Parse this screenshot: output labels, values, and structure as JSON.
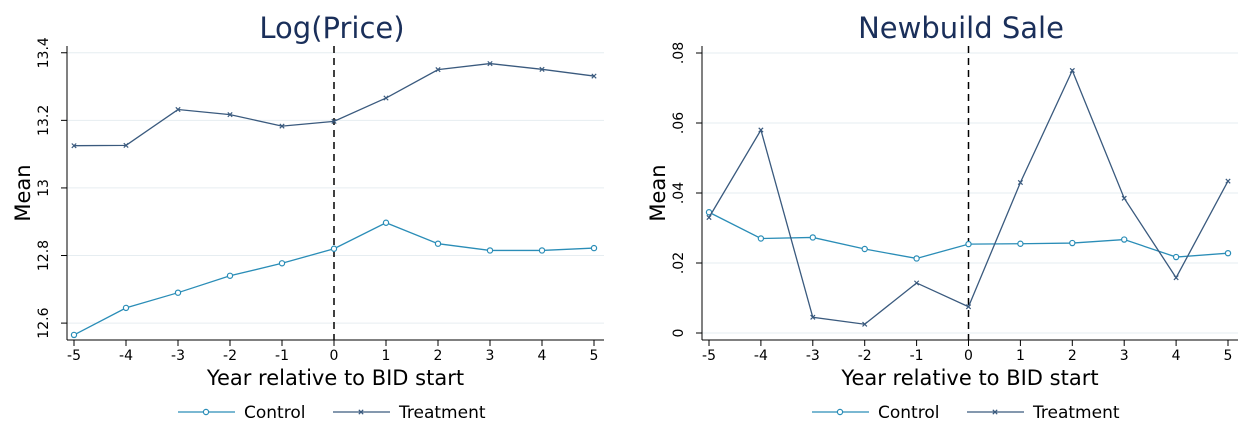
{
  "colors": {
    "control": "#2a8db7",
    "treatment": "#3a5a7e",
    "grid": "#e6edf1",
    "axis": "#000000"
  },
  "chart_data": [
    {
      "type": "line",
      "title": "Log(Price)",
      "xlabel": "Year relative to BID start",
      "ylabel": "Mean",
      "x": [
        -5,
        -4,
        -3,
        -2,
        -1,
        0,
        1,
        2,
        3,
        4,
        5
      ],
      "xlim": [
        -5,
        5
      ],
      "ylim": [
        12.55,
        13.42
      ],
      "yticks": [
        12.6,
        12.8,
        13,
        13.2,
        13.4
      ],
      "ytick_labels": [
        "12.6",
        "12.8",
        "13",
        "13.2",
        "13.4"
      ],
      "xtick_labels": [
        "-5",
        "-4",
        "-3",
        "-2",
        "-1",
        "0",
        "1",
        "2",
        "3",
        "4",
        "5"
      ],
      "vline_x": 0,
      "grid": true,
      "legend_position": "bottom",
      "series": [
        {
          "name": "Control",
          "marker": "circle",
          "values": [
            12.565,
            12.645,
            12.69,
            12.74,
            12.777,
            12.82,
            12.897,
            12.835,
            12.815,
            12.815,
            12.822
          ]
        },
        {
          "name": "Treatment",
          "marker": "x",
          "values": [
            13.125,
            13.126,
            13.232,
            13.217,
            13.183,
            13.197,
            13.266,
            13.35,
            13.368,
            13.351,
            13.331
          ]
        }
      ]
    },
    {
      "type": "line",
      "title": "Newbuild Sale",
      "xlabel": "Year relative to BID start",
      "ylabel": "Mean",
      "x": [
        -5,
        -4,
        -3,
        -2,
        -1,
        0,
        1,
        2,
        3,
        4,
        5
      ],
      "xlim": [
        -5,
        5
      ],
      "ylim": [
        -0.002,
        0.082
      ],
      "yticks": [
        0,
        0.02,
        0.04,
        0.06,
        0.08
      ],
      "ytick_labels": [
        "0",
        ".02",
        ".04",
        ".06",
        ".08"
      ],
      "xtick_labels": [
        "-5",
        "-4",
        "-3",
        "-2",
        "-1",
        "0",
        "1",
        "2",
        "3",
        "4",
        "5"
      ],
      "vline_x": 0,
      "grid": true,
      "legend_position": "bottom",
      "series": [
        {
          "name": "Control",
          "marker": "circle",
          "values": [
            0.0345,
            0.027,
            0.0273,
            0.024,
            0.0213,
            0.0254,
            0.0255,
            0.0257,
            0.0267,
            0.0217,
            0.0228
          ]
        },
        {
          "name": "Treatment",
          "marker": "x",
          "values": [
            0.033,
            0.058,
            0.0045,
            0.0025,
            0.0143,
            0.0075,
            0.043,
            0.075,
            0.0385,
            0.0158,
            0.0434
          ]
        }
      ]
    }
  ]
}
